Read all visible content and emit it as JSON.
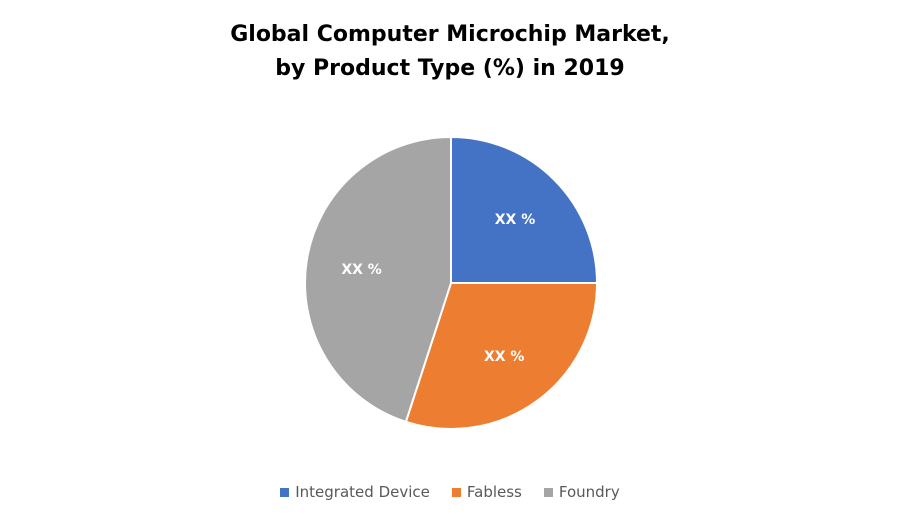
{
  "chart_data": {
    "type": "pie",
    "title": [
      "Global Computer Microchip Market,",
      "by Product Type (%) in 2019"
    ],
    "slices": [
      {
        "name": "Integrated Device",
        "value": 25,
        "label": "XX %",
        "color": "#4472C4"
      },
      {
        "name": "Fabless",
        "value": 30,
        "label": "XX %",
        "color": "#ED7D31"
      },
      {
        "name": "Foundry",
        "value": 45,
        "label": "XX %",
        "color": "#A5A5A5"
      }
    ],
    "start_angle": "12 o'clock",
    "direction": "clockwise",
    "legend_position": "bottom"
  }
}
